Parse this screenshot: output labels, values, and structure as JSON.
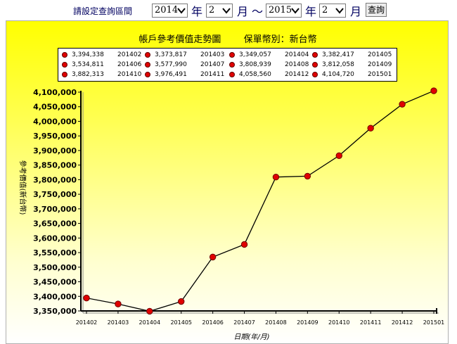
{
  "toolbar": {
    "label": "請設定查詢區間",
    "start_year": "2014",
    "year_unit": "年",
    "start_month": "2",
    "month_unit": "月",
    "range_sep": "～",
    "end_year": "2015",
    "end_month": "2",
    "query_label": "查詢"
  },
  "colors": {
    "marker": "#e00000",
    "line": "#000000",
    "panel_top": "#ffff00"
  },
  "chart_data": {
    "type": "line",
    "title": "帳戶參考價值走勢圖",
    "subtitle": "保單幣別：新台幣",
    "xlabel": "日期(年/月)",
    "ylabel": "參考價值(新台幣)",
    "categories": [
      "201402",
      "201403",
      "201404",
      "201405",
      "201406",
      "201407",
      "201408",
      "201409",
      "201410",
      "201411",
      "201412",
      "201501"
    ],
    "values": [
      3394338,
      3373817,
      3349057,
      3382417,
      3534811,
      3577990,
      3808939,
      3812058,
      3882313,
      3976491,
      4058560,
      4104720
    ],
    "value_labels": [
      "3,394,338",
      "3,373,817",
      "3,349,057",
      "3,382,417",
      "3,534,811",
      "3,577,990",
      "3,808,939",
      "3,812,058",
      "3,882,313",
      "3,976,491",
      "4,058,560",
      "4,104,720"
    ],
    "ylim": [
      3350000,
      4100000
    ],
    "yticks": [
      3350000,
      3400000,
      3450000,
      3500000,
      3550000,
      3600000,
      3650000,
      3700000,
      3750000,
      3800000,
      3850000,
      3900000,
      3950000,
      4000000,
      4050000,
      4100000
    ],
    "ytick_labels": [
      "3,350,000",
      "3,400,000",
      "3,450,000",
      "3,500,000",
      "3,550,000",
      "3,600,000",
      "3,650,000",
      "3,700,000",
      "3,750,000",
      "3,800,000",
      "3,850,000",
      "3,900,000",
      "3,950,000",
      "4,000,000",
      "4,050,000",
      "4,100,000"
    ],
    "grid": false,
    "legend_placement": "top"
  }
}
